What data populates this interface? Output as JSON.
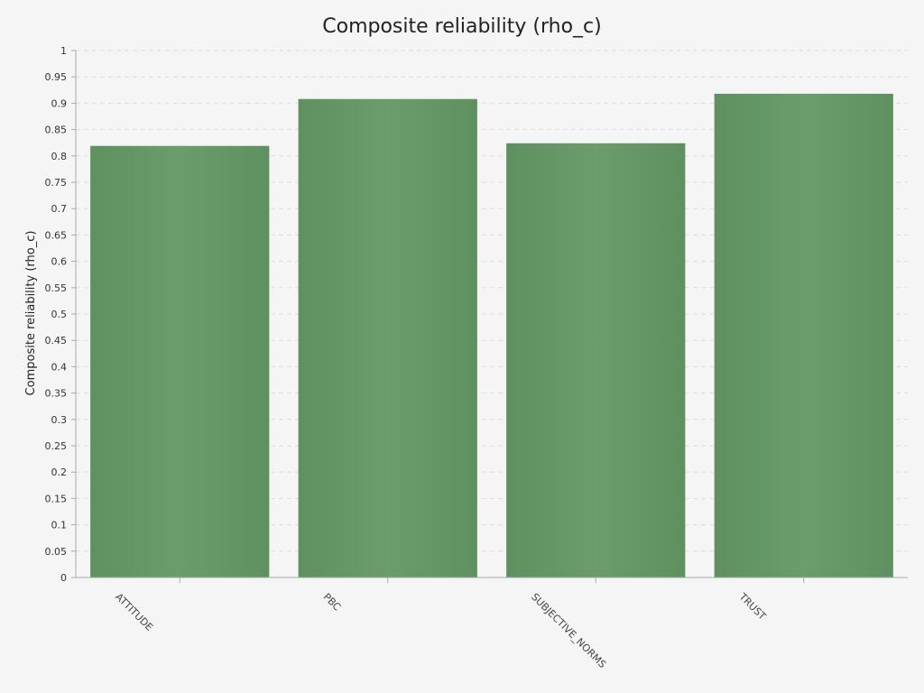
{
  "chart_data": {
    "type": "bar",
    "title": "Composite reliability (rho_c)",
    "xlabel": "",
    "ylabel": "Composite reliability (rho_c)",
    "categories": [
      "ATTITUDE",
      "PBC",
      "SUBJECTIVE_NORMS",
      "TRUST"
    ],
    "values": [
      0.819,
      0.908,
      0.824,
      0.918
    ],
    "ylim": [
      0,
      1
    ],
    "ytick_step": 0.05,
    "grid": true,
    "bar_color": "#659966",
    "background": "#f5f5f5"
  }
}
